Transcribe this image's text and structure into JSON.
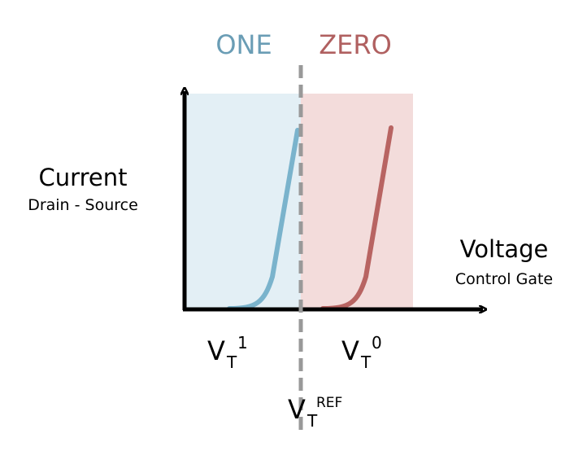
{
  "regions": [
    {
      "label": "ONE"
    },
    {
      "label": "ZERO"
    }
  ],
  "y_axis": {
    "label": "Current",
    "sublabel": "Drain - Source"
  },
  "x_axis": {
    "label": "Voltage",
    "sublabel": "Control Gate"
  },
  "thresholds": [
    {
      "base": "V",
      "subscript": "T",
      "superscript": "1"
    },
    {
      "base": "V",
      "subscript": "T",
      "superscript": "0"
    },
    {
      "base": "V",
      "subscript": "T",
      "superscript": "REF"
    }
  ]
}
